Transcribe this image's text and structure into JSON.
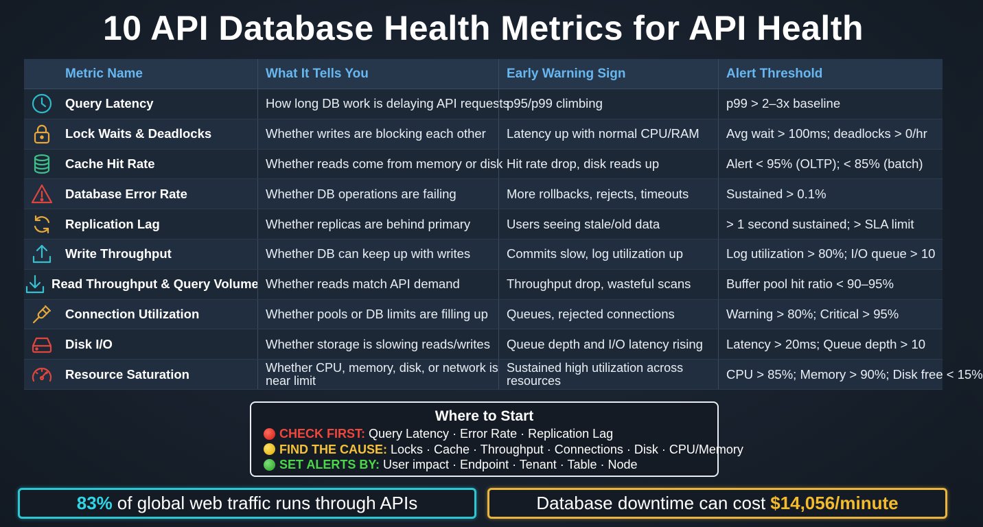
{
  "title": "10 API Database Health Metrics for API Health",
  "table": {
    "headers": [
      "Metric Name",
      "What It Tells You",
      "Early Warning Sign",
      "Alert Threshold"
    ],
    "rows": [
      {
        "icon": "clock-icon",
        "name": "Query Latency",
        "tells": "How long DB work is delaying API requests",
        "warning": "p95/p99 climbing",
        "threshold": "p99 > 2–3x baseline"
      },
      {
        "icon": "lock-icon",
        "name": "Lock Waits & Deadlocks",
        "tells": "Whether writes are blocking each other",
        "warning": "Latency up with normal CPU/RAM",
        "threshold": "Avg wait > 100ms; deadlocks > 0/hr"
      },
      {
        "icon": "database-icon",
        "name": "Cache Hit Rate",
        "tells": "Whether reads come from memory or disk",
        "warning": "Hit rate drop, disk reads up",
        "threshold": "Alert < 95% (OLTP); < 85% (batch)"
      },
      {
        "icon": "warning-triangle-icon",
        "name": "Database Error Rate",
        "tells": "Whether DB operations are failing",
        "warning": "More rollbacks, rejects, timeouts",
        "threshold": "Sustained > 0.1%"
      },
      {
        "icon": "sync-arrows-icon",
        "name": "Replication Lag",
        "tells": "Whether replicas are behind primary",
        "warning": "Users seeing stale/old data",
        "threshold": "> 1 second sustained; > SLA limit"
      },
      {
        "icon": "upload-icon",
        "name": "Write Throughput",
        "tells": "Whether DB can keep up with writes",
        "warning": "Commits slow, log utilization up",
        "threshold": "Log utilization > 80%; I/O queue > 10"
      },
      {
        "icon": "download-icon",
        "name": "Read Throughput & Query Volume",
        "tells": "Whether reads match API demand",
        "warning": "Throughput drop, wasteful scans",
        "threshold": "Buffer pool hit ratio < 90–95%"
      },
      {
        "icon": "plug-icon",
        "name": "Connection Utilization",
        "tells": "Whether pools or DB limits are filling up",
        "warning": "Queues, rejected connections",
        "threshold": "Warning > 80%; Critical > 95%"
      },
      {
        "icon": "hard-drive-icon",
        "name": "Disk I/O",
        "tells": "Whether storage is slowing reads/writes",
        "warning": "Queue depth and I/O latency rising",
        "threshold": "Latency > 20ms; Queue depth > 10"
      },
      {
        "icon": "gauge-icon",
        "name": "Resource Saturation",
        "tells": "Whether CPU, memory, disk, or network is near limit",
        "warning": "Sustained high utilization across resources",
        "threshold": "CPU > 85%; Memory > 90%; Disk free < 15%"
      }
    ]
  },
  "where_to_start": {
    "title": "Where to Start",
    "check_label": "CHECK FIRST:",
    "check_text": "Query Latency · Error Rate · Replication Lag",
    "cause_label": "FIND THE CAUSE:",
    "cause_text": "Locks · Cache · Throughput · Connections · Disk · CPU/Memory",
    "alerts_label": "SET ALERTS BY:",
    "alerts_text": "User impact · Endpoint · Tenant · Table · Node"
  },
  "stats": {
    "left_highlight": "83%",
    "left_text": "of global web traffic runs through APIs",
    "right_text": "Database downtime can cost",
    "right_highlight": "$14,056/minute"
  },
  "colors": {
    "header_text": "#67b7f0",
    "clock": "#2fb9c9",
    "lock": "#e8a93a",
    "database": "#3fbf8a",
    "warning": "#e0463e",
    "sync": "#e8a93a",
    "upload": "#39c0d0",
    "download": "#39c0d0",
    "plug": "#e8a93a",
    "hard_drive": "#e0463e",
    "gauge": "#e0463e"
  }
}
